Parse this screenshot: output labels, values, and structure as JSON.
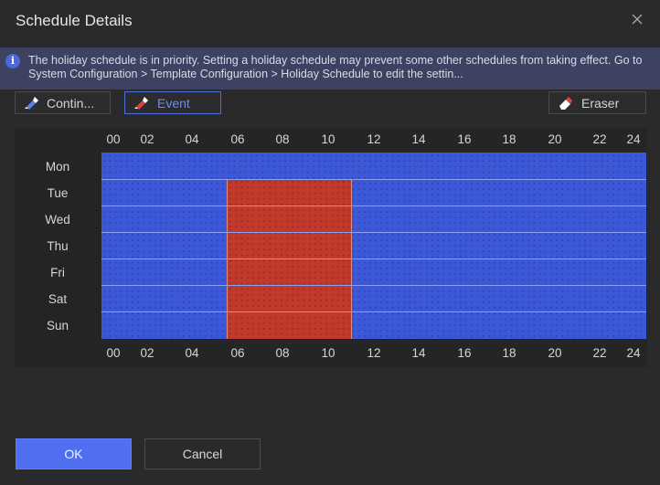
{
  "dialog": {
    "title": "Schedule Details",
    "close_icon": "close-icon"
  },
  "notice": {
    "icon": "info-icon",
    "text": "The holiday schedule is in priority. Setting a holiday schedule may prevent some other schedules from taking effect. Go to System Configuration > Template Configuration > Holiday Schedule to edit the settin..."
  },
  "toolbar": {
    "continuous_label": "Contin...",
    "event_label": "Event",
    "eraser_label": "Eraser",
    "active_tool": "Event"
  },
  "hours": [
    "00",
    "02",
    "04",
    "06",
    "08",
    "10",
    "12",
    "14",
    "16",
    "18",
    "20",
    "22",
    "24"
  ],
  "days": [
    "Mon",
    "Tue",
    "Wed",
    "Thu",
    "Fri",
    "Sat",
    "Sun"
  ],
  "schedule": {
    "colors": {
      "continuous": "#3b58d9",
      "event": "#c0392b"
    },
    "event_block": {
      "days": [
        "Tue",
        "Wed",
        "Thu",
        "Fri",
        "Sat",
        "Sun"
      ],
      "start": "05:30",
      "end": "11:00"
    }
  },
  "buttons": {
    "ok_label": "OK",
    "cancel_label": "Cancel"
  }
}
